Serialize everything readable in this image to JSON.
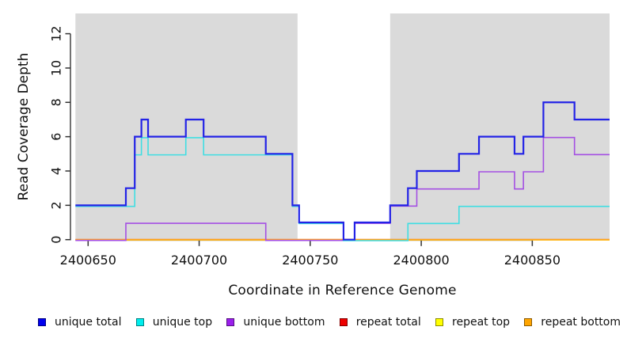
{
  "chart_data": {
    "type": "line",
    "subtype": "step-coverage",
    "title": "",
    "xlabel": "Coordinate in Reference Genome",
    "ylabel": "Read Coverage Depth",
    "xlim": [
      2400644.3,
      2400884.8
    ],
    "ylim": [
      0,
      13.18
    ],
    "plot_bg": "#DADADA",
    "page_bg": "#FFFFFF",
    "grid": "off",
    "legend_position": "bottom",
    "mask_region": {
      "x_start": 2400744.3,
      "x_end": 2400786,
      "color": "#FFFFFF"
    },
    "x_ticks": [
      2400650,
      2400700,
      2400750,
      2400800,
      2400850
    ],
    "y_ticks": [
      0,
      2,
      4,
      6,
      8,
      10,
      12
    ],
    "axis_color": "#444444",
    "tick_color": "#333333",
    "draw_order": [
      "repeat total",
      "repeat top",
      "repeat bottom",
      "unique bottom",
      "unique top",
      "unique total"
    ],
    "series": [
      {
        "name": "unique total",
        "color": "#2323E6",
        "width": 2.2,
        "dy": 0,
        "steps": [
          [
            2400644,
            2
          ],
          [
            2400667,
            3
          ],
          [
            2400671,
            6
          ],
          [
            2400674,
            7
          ],
          [
            2400677,
            6
          ],
          [
            2400694,
            7
          ],
          [
            2400702,
            6
          ],
          [
            2400730,
            5
          ],
          [
            2400742,
            2
          ],
          [
            2400745,
            1
          ],
          [
            2400765,
            0
          ],
          [
            2400770,
            1
          ],
          [
            2400786,
            2
          ],
          [
            2400794,
            3
          ],
          [
            2400798,
            4
          ],
          [
            2400817,
            5
          ],
          [
            2400826,
            6
          ],
          [
            2400842,
            5
          ],
          [
            2400846,
            6
          ],
          [
            2400855,
            8
          ],
          [
            2400869,
            7
          ]
        ]
      },
      {
        "name": "unique top",
        "color": "#3FDEE2",
        "width": 1.6,
        "dy": 1.3,
        "steps": [
          [
            2400644,
            2
          ],
          [
            2400671,
            5
          ],
          [
            2400674,
            6
          ],
          [
            2400677,
            5
          ],
          [
            2400694,
            6
          ],
          [
            2400702,
            5
          ],
          [
            2400742,
            2
          ],
          [
            2400745,
            1
          ],
          [
            2400765,
            0
          ],
          [
            2400794,
            1
          ],
          [
            2400817,
            2
          ]
        ]
      },
      {
        "name": "unique bottom",
        "color": "#A44FE3",
        "width": 1.6,
        "dy": 1.0,
        "steps": [
          [
            2400644,
            0
          ],
          [
            2400667,
            1
          ],
          [
            2400730,
            0
          ],
          [
            2400770,
            1
          ],
          [
            2400786,
            2
          ],
          [
            2400798,
            3
          ],
          [
            2400826,
            4
          ],
          [
            2400842,
            3
          ],
          [
            2400846,
            4
          ],
          [
            2400855,
            6
          ],
          [
            2400869,
            5
          ]
        ]
      },
      {
        "name": "repeat total",
        "color": "#E0365F",
        "width": 1.6,
        "dy": 0,
        "steps": [
          [
            2400644,
            0
          ]
        ]
      },
      {
        "name": "repeat top",
        "color": "#FFFF00",
        "width": 1.4,
        "dy": 0.5,
        "steps": [
          [
            2400644,
            0
          ]
        ]
      },
      {
        "name": "repeat bottom",
        "color": "#FFA520",
        "width": 2.0,
        "dy": 0,
        "steps": [
          [
            2400644,
            0
          ]
        ]
      }
    ]
  },
  "legend": {
    "items": [
      {
        "label": "unique total",
        "color": "#0000EE"
      },
      {
        "label": "unique top",
        "color": "#00EDED"
      },
      {
        "label": "unique bottom",
        "color": "#9B1FEC"
      },
      {
        "label": "repeat total",
        "color": "#EE0000"
      },
      {
        "label": "repeat top",
        "color": "#FFFF00"
      },
      {
        "label": "repeat bottom",
        "color": "#FFA500"
      }
    ]
  }
}
